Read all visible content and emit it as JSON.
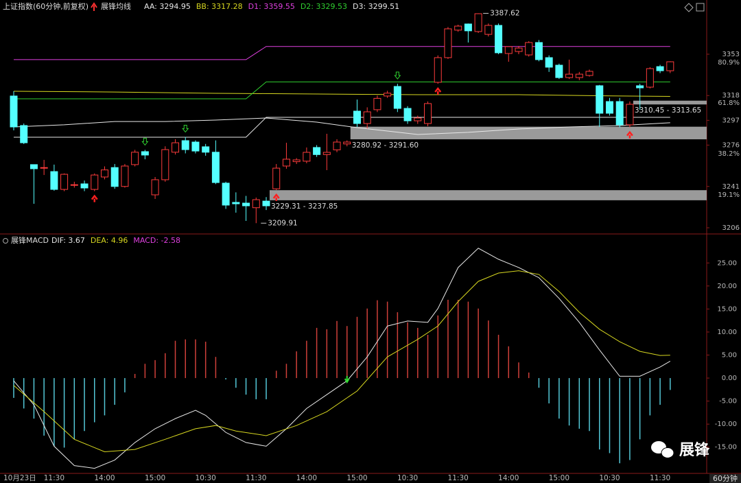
{
  "x_axis_unit": "60分钟",
  "watermark": "展锋",
  "chart_data": [
    {
      "type": "candlestick",
      "title": "上证指数(60分钟,前复权)",
      "indicator_name": "展锋均线",
      "categories": [
        "10月23日",
        null,
        null,
        null,
        "11:30",
        null,
        null,
        null,
        null,
        "14:00",
        null,
        null,
        null,
        null,
        "15:00",
        null,
        null,
        null,
        null,
        "10:30",
        null,
        null,
        null,
        null,
        "11:30",
        null,
        null,
        null,
        null,
        "14:00",
        null,
        null,
        null,
        null,
        "15:00",
        null,
        null,
        null,
        null,
        "10:30",
        null,
        null,
        null,
        null,
        "11:30",
        null,
        null,
        null,
        null,
        "14:00",
        null,
        null,
        null,
        null,
        "15:00",
        null,
        null,
        null,
        null,
        "10:30",
        null,
        null,
        null,
        null,
        "11:30",
        null
      ],
      "open": [
        3317.6,
        3292.6,
        3259.5,
        3256.5,
        3253.6,
        3238.5,
        3242,
        3243.2,
        3238.5,
        3249,
        3257,
        3241,
        3259.5,
        3270.5,
        3233.9,
        3246.7,
        3270,
        3279.8,
        3278.6,
        3274.6,
        3270,
        3243.8,
        3227.5,
        3226.9,
        3223,
        3228.6,
        3239,
        3258.3,
        3262,
        3262.4,
        3274,
        3268,
        3272,
        3277,
        3304.8,
        3294.3,
        3306,
        3317.6,
        3325.7,
        3307.1,
        3296.6,
        3294.3,
        3329.2,
        3350.1,
        3373.4,
        3378.6,
        3372.2,
        3369.8,
        3377.4,
        3353.6,
        3355.3,
        3352.4,
        3362.9,
        3350.1,
        3343.7,
        3333.2,
        3333.2,
        3335,
        3326.3,
        3312.9,
        3312.9,
        3293.2,
        3326.3,
        3325.1,
        3342.5,
        3339
      ],
      "high": [
        3321.6,
        3294.3,
        3259.5,
        3263.5,
        3259.5,
        3252,
        3245,
        3246,
        3252,
        3258,
        3260,
        3260,
        3272,
        3272,
        3249,
        3275,
        3281,
        3283,
        3280,
        3277,
        3280,
        3245,
        3236,
        3233,
        3231.6,
        3232,
        3260,
        3278,
        3265,
        3274,
        3276,
        3285.6,
        3281,
        3280,
        3314.6,
        3308,
        3318,
        3322,
        3328,
        3309,
        3301,
        3313,
        3352,
        3376,
        3378,
        3379,
        3387.62,
        3379,
        3379,
        3359.4,
        3360,
        3364,
        3365,
        3352,
        3345,
        3348.4,
        3338,
        3340,
        3327,
        3316,
        3316,
        3313,
        3328,
        3342,
        3344,
        3347
      ],
      "low": [
        3288.5,
        3276.9,
        3226.3,
        3250.7,
        3237.4,
        3237,
        3240,
        3237,
        3237,
        3247,
        3239,
        3240,
        3258,
        3264,
        3230.4,
        3245,
        3268,
        3269,
        3269,
        3267,
        3243,
        3222,
        3218.8,
        3211.8,
        3209.91,
        3221,
        3238,
        3256,
        3260,
        3260.6,
        3266,
        3254.8,
        3270,
        3275,
        3291.4,
        3290,
        3304,
        3316,
        3304,
        3294,
        3294,
        3292,
        3328,
        3349,
        3372,
        3362.9,
        3371,
        3368,
        3353,
        3346.6,
        3353,
        3351,
        3347,
        3338,
        3332,
        3332,
        3331,
        3334,
        3291.4,
        3301,
        3291,
        3291,
        3306,
        3324,
        3337,
        3337
      ],
      "close": [
        3291.4,
        3278,
        3256,
        3257,
        3238.5,
        3251.3,
        3242.5,
        3239.7,
        3250.7,
        3255,
        3241,
        3258.3,
        3270,
        3267.6,
        3246.7,
        3272.2,
        3278,
        3272.2,
        3271,
        3270,
        3244.3,
        3225.2,
        3226.3,
        3224.6,
        3229.8,
        3224.6,
        3256.5,
        3264.1,
        3263.5,
        3269.9,
        3268,
        3269.9,
        3278.6,
        3278.6,
        3294.3,
        3304.2,
        3315.6,
        3320,
        3307.1,
        3296.6,
        3299,
        3311.2,
        3350.1,
        3374.5,
        3376.8,
        3372.8,
        3387.3,
        3377.4,
        3354.2,
        3359.4,
        3358.2,
        3362.9,
        3348.4,
        3342,
        3333.2,
        3336.1,
        3336.1,
        3338.5,
        3303,
        3303,
        3293.2,
        3310.6,
        3324.5,
        3340.8,
        3339,
        3346.6
      ],
      "up_color": "#ff3c3c",
      "down_color": "#54ffff",
      "ylim": [
        3201,
        3396
      ],
      "yticks": [
        3353,
        3318,
        3297,
        3276,
        3241,
        3206
      ],
      "fib_labels": [
        {
          "value": 3346,
          "label": "80.9%"
        },
        {
          "value": 3311.7,
          "label": "61.8%"
        },
        {
          "value": 3268.7,
          "label": "38.2%"
        },
        {
          "value": 3233.9,
          "label": "19.1%"
        }
      ],
      "series": [
        {
          "name": "AA",
          "legend_label": "AA: 3294.95",
          "color": "#e8e8e8",
          "x": [
            0,
            5,
            10,
            15,
            20,
            25,
            30,
            34,
            40,
            45,
            50,
            55,
            60,
            65
          ],
          "values": [
            3291.4,
            3293.2,
            3296,
            3296,
            3297.2,
            3299,
            3295.5,
            3290.8,
            3285,
            3286.8,
            3289.7,
            3291.4,
            3292.6,
            3294.95
          ]
        },
        {
          "name": "BB",
          "legend_label": "BB: 3317.28",
          "color": "#d8d820",
          "x": [
            0,
            10,
            20,
            30,
            40,
            50,
            60,
            65
          ],
          "values": [
            3321.6,
            3321,
            3319.9,
            3319.3,
            3318.7,
            3318.7,
            3317.6,
            3317.28
          ]
        },
        {
          "name": "D1",
          "legend_label": "D1: 3359.55",
          "color": "#e040e0",
          "x": [
            0,
            23,
            25,
            65
          ],
          "values": [
            3348.4,
            3348.4,
            3359.55,
            3359.55
          ]
        },
        {
          "name": "D2",
          "legend_label": "D2: 3329.53",
          "color": "#30d030",
          "x": [
            0,
            23,
            25,
            65
          ],
          "values": [
            3315.2,
            3315.2,
            3329.53,
            3329.53
          ]
        },
        {
          "name": "D3",
          "legend_label": "D3: 3299.51",
          "color": "#e8e8e8",
          "x": [
            0,
            23,
            25,
            65
          ],
          "values": [
            3282.7,
            3282.7,
            3299.51,
            3299.51
          ]
        }
      ],
      "zones": [
        {
          "start": 33,
          "low": 3280.92,
          "high": 3291.6,
          "label": "3280.92 - 3291.60"
        },
        {
          "start": 25,
          "low": 3229.31,
          "high": 3237.85,
          "label": "3229.31 - 3237.85"
        },
        {
          "start": 61,
          "low": 3310.45,
          "high": 3313.65,
          "label": "3310.45 - 3313.65"
        }
      ],
      "annotations": [
        {
          "index": 46,
          "value": 3387.62,
          "label": "3387.62",
          "side": "high"
        },
        {
          "index": 24,
          "value": 3209.91,
          "label": "3209.91",
          "side": "low"
        }
      ],
      "buy_signals": [
        8,
        26,
        42,
        61
      ],
      "sell_signals": [
        13,
        17,
        38
      ]
    },
    {
      "type": "macd",
      "title": "展锋MACD",
      "values": [
        -4.3,
        -6.6,
        -8.8,
        -12.5,
        -14.8,
        -15.1,
        -13.3,
        -11.5,
        -9.6,
        -8.1,
        -5.8,
        -3.1,
        0.9,
        3.1,
        3.9,
        5.4,
        8.1,
        8.4,
        8.4,
        7.9,
        4.6,
        -0.3,
        -2.1,
        -3.6,
        -4.6,
        -4.6,
        1.6,
        3.1,
        5.8,
        8.1,
        10.9,
        10.6,
        12.4,
        11.3,
        13.3,
        15.1,
        16.9,
        16.6,
        14.3,
        12.1,
        10.9,
        9.4,
        13.6,
        17,
        17,
        16.6,
        15.1,
        12.5,
        9.4,
        6.9,
        3.4,
        1.2,
        -2.1,
        -5.5,
        -8.8,
        -10.3,
        -11,
        -11.5,
        -15.5,
        -16.3,
        -18.5,
        -17.8,
        -13.3,
        -8.1,
        -5.8,
        -2.58
      ],
      "value_label": "MACD: -2.58",
      "label_color": "#e040e0",
      "up_color": "#d0403a",
      "down_color": "#54c8d8",
      "ylim": [
        -20.7,
        30.7
      ],
      "yticks": [
        {
          "value": 25,
          "label": "25.00"
        },
        {
          "value": 20,
          "label": "20.00"
        },
        {
          "value": 15,
          "label": "15.00"
        },
        {
          "value": 10,
          "label": "10.00"
        },
        {
          "value": 5,
          "label": "5.00"
        },
        {
          "value": 0,
          "label": "0.00"
        },
        {
          "value": -5,
          "label": "-5.00"
        },
        {
          "value": -10,
          "label": "-10.00"
        },
        {
          "value": -15,
          "label": "-15.00"
        }
      ],
      "series": [
        {
          "name": "DIF",
          "legend_label": "DIF: 3.67",
          "color": "#e8e8e8",
          "x": [
            0,
            2,
            4,
            6,
            8,
            10,
            12,
            14,
            16,
            18,
            19,
            21,
            23,
            25,
            27,
            29,
            31,
            33,
            35,
            37,
            39,
            41,
            42,
            44,
            46,
            48,
            50,
            52,
            54,
            56,
            58,
            60,
            62,
            64,
            65
          ],
          "values": [
            -0.6,
            -5.8,
            -14.8,
            -19,
            -19.6,
            -17.8,
            -14,
            -11,
            -8.8,
            -7,
            -8.1,
            -11.8,
            -14,
            -14.8,
            -11,
            -6.6,
            -3.6,
            -0.6,
            4.6,
            11.3,
            12.4,
            12.1,
            15.1,
            24,
            28.2,
            25.8,
            24,
            21.8,
            17.3,
            12.1,
            6.1,
            0.4,
            0.4,
            2.4,
            3.67
          ]
        },
        {
          "name": "DEA",
          "legend_label": "DEA: 4.96",
          "color": "#d8d820",
          "x": [
            0,
            3,
            6,
            9,
            12,
            15,
            18,
            20,
            22,
            25,
            28,
            31,
            34,
            37,
            40,
            42,
            44,
            46,
            48,
            50,
            52,
            54,
            56,
            58,
            60,
            62,
            64,
            65
          ],
          "values": [
            -1.6,
            -7.3,
            -13.3,
            -16,
            -15.5,
            -13.3,
            -11,
            -10.3,
            -11.5,
            -12.5,
            -10.3,
            -7.3,
            -2.8,
            4.6,
            8.4,
            11.3,
            16.6,
            21,
            22.8,
            23.3,
            22.5,
            18.8,
            14.3,
            10.6,
            7.9,
            5.8,
            4.9,
            4.96
          ]
        }
      ],
      "sell_signals": [
        33
      ]
    }
  ]
}
